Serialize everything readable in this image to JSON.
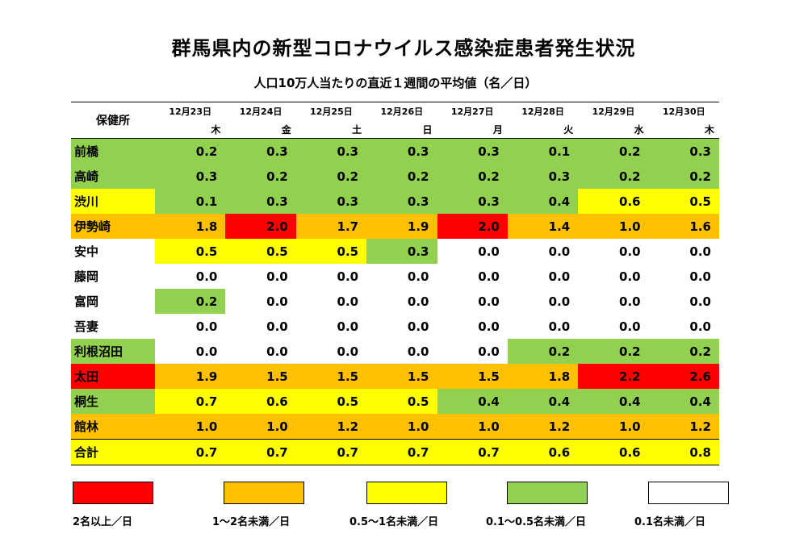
{
  "title": "群馬県内の新型コロナウイルス感染症患者発生状況",
  "subtitle": "人口10万人当たりの直近１週間の平均値（名／日）",
  "header": {
    "label": "保健所",
    "dates": [
      "12月23日",
      "12月24日",
      "12月25日",
      "12月26日",
      "12月27日",
      "12月28日",
      "12月29日",
      "12月30日"
    ],
    "days": [
      "木",
      "金",
      "土",
      "日",
      "月",
      "火",
      "水",
      "木"
    ]
  },
  "colors": {
    "red": "#ff0000",
    "orange": "#ffc000",
    "yellow": "#ffff00",
    "green": "#92d050",
    "white": "#ffffff"
  },
  "rows": [
    {
      "name": "前橋",
      "name_color": "green",
      "values": [
        "0.2",
        "0.3",
        "0.3",
        "0.3",
        "0.3",
        "0.1",
        "0.2",
        "0.3"
      ],
      "colors": [
        "green",
        "green",
        "green",
        "green",
        "green",
        "green",
        "green",
        "green"
      ]
    },
    {
      "name": "高崎",
      "name_color": "green",
      "values": [
        "0.3",
        "0.2",
        "0.2",
        "0.2",
        "0.2",
        "0.3",
        "0.2",
        "0.2"
      ],
      "colors": [
        "green",
        "green",
        "green",
        "green",
        "green",
        "green",
        "green",
        "green"
      ]
    },
    {
      "name": "渋川",
      "name_color": "yellow",
      "values": [
        "0.1",
        "0.3",
        "0.3",
        "0.3",
        "0.3",
        "0.4",
        "0.6",
        "0.5"
      ],
      "colors": [
        "green",
        "green",
        "green",
        "green",
        "green",
        "green",
        "yellow",
        "yellow"
      ]
    },
    {
      "name": "伊勢崎",
      "name_color": "orange",
      "values": [
        "1.8",
        "2.0",
        "1.7",
        "1.9",
        "2.0",
        "1.4",
        "1.0",
        "1.6"
      ],
      "colors": [
        "orange",
        "red",
        "orange",
        "orange",
        "red",
        "orange",
        "orange",
        "orange"
      ]
    },
    {
      "name": "安中",
      "name_color": "white",
      "values": [
        "0.5",
        "0.5",
        "0.5",
        "0.3",
        "0.0",
        "0.0",
        "0.0",
        "0.0"
      ],
      "colors": [
        "yellow",
        "yellow",
        "yellow",
        "green",
        "white",
        "white",
        "white",
        "white"
      ]
    },
    {
      "name": "藤岡",
      "name_color": "white",
      "values": [
        "0.0",
        "0.0",
        "0.0",
        "0.0",
        "0.0",
        "0.0",
        "0.0",
        "0.0"
      ],
      "colors": [
        "white",
        "white",
        "white",
        "white",
        "white",
        "white",
        "white",
        "white"
      ]
    },
    {
      "name": "富岡",
      "name_color": "white",
      "values": [
        "0.2",
        "0.0",
        "0.0",
        "0.0",
        "0.0",
        "0.0",
        "0.0",
        "0.0"
      ],
      "colors": [
        "green",
        "white",
        "white",
        "white",
        "white",
        "white",
        "white",
        "white"
      ]
    },
    {
      "name": "吾妻",
      "name_color": "white",
      "values": [
        "0.0",
        "0.0",
        "0.0",
        "0.0",
        "0.0",
        "0.0",
        "0.0",
        "0.0"
      ],
      "colors": [
        "white",
        "white",
        "white",
        "white",
        "white",
        "white",
        "white",
        "white"
      ]
    },
    {
      "name": "利根沼田",
      "name_color": "green",
      "values": [
        "0.0",
        "0.0",
        "0.0",
        "0.0",
        "0.0",
        "0.2",
        "0.2",
        "0.2"
      ],
      "colors": [
        "white",
        "white",
        "white",
        "white",
        "white",
        "green",
        "green",
        "green"
      ]
    },
    {
      "name": "太田",
      "name_color": "red",
      "values": [
        "1.9",
        "1.5",
        "1.5",
        "1.5",
        "1.5",
        "1.8",
        "2.2",
        "2.6"
      ],
      "colors": [
        "orange",
        "orange",
        "orange",
        "orange",
        "orange",
        "orange",
        "red",
        "red"
      ]
    },
    {
      "name": "桐生",
      "name_color": "green",
      "values": [
        "0.7",
        "0.6",
        "0.5",
        "0.5",
        "0.4",
        "0.4",
        "0.4",
        "0.4"
      ],
      "colors": [
        "yellow",
        "yellow",
        "yellow",
        "yellow",
        "green",
        "green",
        "green",
        "green"
      ]
    },
    {
      "name": "館林",
      "name_color": "orange",
      "values": [
        "1.0",
        "1.0",
        "1.2",
        "1.0",
        "1.0",
        "1.2",
        "1.0",
        "1.2"
      ],
      "colors": [
        "orange",
        "orange",
        "orange",
        "orange",
        "orange",
        "orange",
        "orange",
        "orange"
      ]
    }
  ],
  "total": {
    "name": "合計",
    "name_color": "yellow",
    "values": [
      "0.7",
      "0.7",
      "0.7",
      "0.7",
      "0.7",
      "0.6",
      "0.6",
      "0.8"
    ],
    "colors": [
      "yellow",
      "yellow",
      "yellow",
      "yellow",
      "yellow",
      "yellow",
      "yellow",
      "yellow"
    ]
  },
  "legend": [
    {
      "color": "red",
      "label": "2名以上／日"
    },
    {
      "color": "orange",
      "label": "1～2名未満／日"
    },
    {
      "color": "yellow",
      "label": "0.5～1名未満／日"
    },
    {
      "color": "green",
      "label": "0.1～0.5名未満／日"
    },
    {
      "color": "white",
      "label": "0.1名未満／日"
    }
  ]
}
